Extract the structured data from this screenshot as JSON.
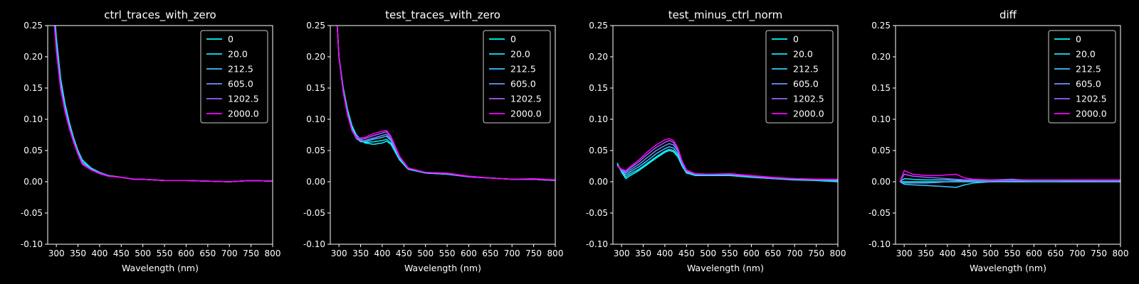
{
  "chart_data": [
    {
      "type": "line",
      "title": "ctrl_traces_with_zero",
      "xlabel": "Wavelength (nm)",
      "ylabel": "",
      "xlim": [
        280,
        800
      ],
      "ylim": [
        -0.1,
        0.25
      ],
      "xticks": [
        "300",
        "350",
        "400",
        "450",
        "500",
        "550",
        "600",
        "650",
        "700",
        "750",
        "800"
      ],
      "yticks": [
        "-0.10",
        "-0.05",
        "0.00",
        "0.05",
        "0.10",
        "0.15",
        "0.20",
        "0.25"
      ],
      "legend": "top-right",
      "x": [
        290,
        300,
        310,
        320,
        330,
        340,
        350,
        360,
        380,
        400,
        420,
        450,
        480,
        500,
        550,
        600,
        650,
        700,
        750,
        800
      ],
      "series": [
        {
          "name": "0",
          "color": "#00ffff",
          "values": [
            0.32,
            0.23,
            0.165,
            0.125,
            0.095,
            0.07,
            0.05,
            0.035,
            0.022,
            0.015,
            0.01,
            0.007,
            0.004,
            0.004,
            0.002,
            0.002,
            0.001,
            0.0,
            0.002,
            0.001
          ]
        },
        {
          "name": "20.0",
          "color": "#1ce3ff",
          "values": [
            0.31,
            0.22,
            0.16,
            0.122,
            0.092,
            0.068,
            0.049,
            0.034,
            0.021,
            0.015,
            0.01,
            0.007,
            0.004,
            0.004,
            0.002,
            0.002,
            0.001,
            0.0,
            0.002,
            0.001
          ]
        },
        {
          "name": "212.5",
          "color": "#3ac5ff",
          "values": [
            0.3,
            0.215,
            0.155,
            0.118,
            0.09,
            0.066,
            0.047,
            0.031,
            0.02,
            0.014,
            0.01,
            0.007,
            0.004,
            0.004,
            0.002,
            0.002,
            0.001,
            0.0,
            0.002,
            0.001
          ]
        },
        {
          "name": "605.0",
          "color": "#6a95ff",
          "values": [
            0.3,
            0.212,
            0.152,
            0.116,
            0.088,
            0.065,
            0.046,
            0.03,
            0.02,
            0.014,
            0.01,
            0.007,
            0.004,
            0.004,
            0.002,
            0.002,
            0.001,
            0.0,
            0.002,
            0.001
          ]
        },
        {
          "name": "1202.5",
          "color": "#9e61ff",
          "values": [
            0.3,
            0.21,
            0.15,
            0.114,
            0.086,
            0.064,
            0.045,
            0.029,
            0.019,
            0.014,
            0.009,
            0.007,
            0.004,
            0.004,
            0.002,
            0.002,
            0.001,
            0.0,
            0.002,
            0.001
          ]
        },
        {
          "name": "2000.0",
          "color": "#ff00ff",
          "values": [
            0.3,
            0.208,
            0.148,
            0.112,
            0.085,
            0.063,
            0.044,
            0.028,
            0.019,
            0.013,
            0.009,
            0.007,
            0.004,
            0.004,
            0.002,
            0.002,
            0.001,
            0.0,
            0.002,
            0.001
          ]
        }
      ]
    },
    {
      "type": "line",
      "title": "test_traces_with_zero",
      "xlabel": "Wavelength (nm)",
      "ylabel": "",
      "xlim": [
        280,
        800
      ],
      "ylim": [
        -0.1,
        0.25
      ],
      "xticks": [
        "300",
        "350",
        "400",
        "450",
        "500",
        "550",
        "600",
        "650",
        "700",
        "750",
        "800"
      ],
      "yticks": [
        "-0.10",
        "-0.05",
        "0.00",
        "0.05",
        "0.10",
        "0.15",
        "0.20",
        "0.25"
      ],
      "legend": "top-right",
      "x": [
        290,
        300,
        310,
        320,
        330,
        340,
        350,
        360,
        380,
        400,
        410,
        420,
        440,
        460,
        500,
        550,
        600,
        650,
        700,
        750,
        800
      ],
      "series": [
        {
          "name": "0",
          "color": "#00ffff",
          "values": [
            0.32,
            0.2,
            0.15,
            0.115,
            0.09,
            0.075,
            0.068,
            0.062,
            0.06,
            0.062,
            0.065,
            0.06,
            0.035,
            0.02,
            0.014,
            0.012,
            0.008,
            0.006,
            0.004,
            0.004,
            0.002
          ]
        },
        {
          "name": "20.0",
          "color": "#1ce3ff",
          "values": [
            0.32,
            0.2,
            0.148,
            0.112,
            0.087,
            0.072,
            0.065,
            0.063,
            0.064,
            0.066,
            0.068,
            0.062,
            0.036,
            0.02,
            0.014,
            0.012,
            0.008,
            0.006,
            0.004,
            0.004,
            0.002
          ]
        },
        {
          "name": "212.5",
          "color": "#3ac5ff",
          "values": [
            0.32,
            0.2,
            0.146,
            0.11,
            0.085,
            0.07,
            0.064,
            0.064,
            0.068,
            0.071,
            0.073,
            0.066,
            0.038,
            0.021,
            0.014,
            0.013,
            0.008,
            0.006,
            0.004,
            0.004,
            0.002
          ]
        },
        {
          "name": "605.0",
          "color": "#6a95ff",
          "values": [
            0.32,
            0.2,
            0.145,
            0.108,
            0.083,
            0.069,
            0.065,
            0.066,
            0.07,
            0.074,
            0.076,
            0.068,
            0.039,
            0.021,
            0.015,
            0.013,
            0.008,
            0.006,
            0.004,
            0.004,
            0.002
          ]
        },
        {
          "name": "1202.5",
          "color": "#9e61ff",
          "values": [
            0.32,
            0.2,
            0.144,
            0.107,
            0.082,
            0.07,
            0.068,
            0.069,
            0.074,
            0.078,
            0.08,
            0.071,
            0.04,
            0.022,
            0.015,
            0.013,
            0.008,
            0.006,
            0.004,
            0.004,
            0.002
          ]
        },
        {
          "name": "2000.0",
          "color": "#ff00ff",
          "values": [
            0.32,
            0.2,
            0.143,
            0.106,
            0.082,
            0.071,
            0.07,
            0.071,
            0.077,
            0.081,
            0.082,
            0.073,
            0.041,
            0.022,
            0.015,
            0.014,
            0.009,
            0.006,
            0.004,
            0.005,
            0.003
          ]
        }
      ]
    },
    {
      "type": "line",
      "title": "test_minus_ctrl_norm",
      "xlabel": "Wavelength (nm)",
      "ylabel": "",
      "xlim": [
        280,
        800
      ],
      "ylim": [
        -0.1,
        0.25
      ],
      "xticks": [
        "300",
        "350",
        "400",
        "450",
        "500",
        "550",
        "600",
        "650",
        "700",
        "750",
        "800"
      ],
      "yticks": [
        "-0.10",
        "-0.05",
        "0.00",
        "0.05",
        "0.10",
        "0.15",
        "0.20",
        "0.25"
      ],
      "legend": "top-right",
      "x": [
        290,
        300,
        310,
        320,
        340,
        360,
        380,
        400,
        410,
        420,
        430,
        440,
        450,
        470,
        500,
        550,
        600,
        650,
        700,
        750,
        800
      ],
      "series": [
        {
          "name": "0",
          "color": "#00ffff",
          "values": [
            0.03,
            0.015,
            0.005,
            0.01,
            0.018,
            0.028,
            0.038,
            0.047,
            0.05,
            0.048,
            0.04,
            0.025,
            0.014,
            0.01,
            0.01,
            0.01,
            0.007,
            0.005,
            0.003,
            0.002,
            0.0
          ]
        },
        {
          "name": "20.0",
          "color": "#1ce3ff",
          "values": [
            0.028,
            0.016,
            0.008,
            0.013,
            0.02,
            0.03,
            0.04,
            0.049,
            0.052,
            0.05,
            0.042,
            0.026,
            0.015,
            0.011,
            0.011,
            0.011,
            0.008,
            0.005,
            0.004,
            0.003,
            0.001
          ]
        },
        {
          "name": "212.5",
          "color": "#3ac5ff",
          "values": [
            0.027,
            0.017,
            0.011,
            0.016,
            0.024,
            0.034,
            0.045,
            0.053,
            0.056,
            0.054,
            0.045,
            0.028,
            0.016,
            0.011,
            0.011,
            0.011,
            0.008,
            0.005,
            0.004,
            0.003,
            0.002
          ]
        },
        {
          "name": "605.0",
          "color": "#6a95ff",
          "values": [
            0.026,
            0.018,
            0.014,
            0.019,
            0.028,
            0.039,
            0.05,
            0.058,
            0.061,
            0.059,
            0.049,
            0.03,
            0.017,
            0.012,
            0.012,
            0.012,
            0.009,
            0.006,
            0.005,
            0.003,
            0.003
          ]
        },
        {
          "name": "1202.5",
          "color": "#9e61ff",
          "values": [
            0.026,
            0.019,
            0.016,
            0.022,
            0.032,
            0.044,
            0.055,
            0.063,
            0.066,
            0.063,
            0.052,
            0.032,
            0.018,
            0.012,
            0.012,
            0.012,
            0.009,
            0.006,
            0.005,
            0.004,
            0.003
          ]
        },
        {
          "name": "2000.0",
          "color": "#ff00ff",
          "values": [
            0.026,
            0.02,
            0.018,
            0.024,
            0.035,
            0.048,
            0.059,
            0.067,
            0.069,
            0.066,
            0.054,
            0.033,
            0.019,
            0.013,
            0.012,
            0.013,
            0.01,
            0.007,
            0.005,
            0.004,
            0.004
          ]
        }
      ]
    },
    {
      "type": "line",
      "title": "diff",
      "xlabel": "Wavelength (nm)",
      "ylabel": "",
      "xlim": [
        280,
        800
      ],
      "ylim": [
        -0.1,
        0.25
      ],
      "xticks": [
        "300",
        "350",
        "400",
        "450",
        "500",
        "550",
        "600",
        "650",
        "700",
        "750",
        "800"
      ],
      "yticks": [
        "-0.10",
        "-0.05",
        "0.00",
        "0.05",
        "0.10",
        "0.15",
        "0.20",
        "0.25"
      ],
      "legend": "top-right",
      "x": [
        290,
        300,
        320,
        350,
        380,
        400,
        420,
        440,
        460,
        500,
        550,
        600,
        650,
        700,
        750,
        800
      ],
      "series": [
        {
          "name": "0",
          "color": "#00ffff",
          "values": [
            0.0,
            0.0,
            0.0,
            0.0,
            0.0,
            0.0,
            0.0,
            0.0,
            0.0,
            0.0,
            0.0,
            0.0,
            0.0,
            0.0,
            0.0,
            0.0
          ]
        },
        {
          "name": "20.0",
          "color": "#1ce3ff",
          "values": [
            0.0,
            0.005,
            0.004,
            0.003,
            0.003,
            0.003,
            0.002,
            0.002,
            0.003,
            0.003,
            0.004,
            0.002,
            0.002,
            0.002,
            0.002,
            0.001
          ]
        },
        {
          "name": "212.5",
          "color": "#3ac5ff",
          "values": [
            0.0,
            -0.004,
            -0.005,
            -0.006,
            -0.007,
            -0.008,
            -0.009,
            -0.005,
            -0.002,
            0.0,
            0.001,
            0.002,
            0.002,
            0.002,
            0.001,
            0.001
          ]
        },
        {
          "name": "605.0",
          "color": "#6a95ff",
          "values": [
            0.0,
            -0.002,
            -0.002,
            -0.002,
            -0.001,
            0.0,
            0.0,
            0.001,
            0.002,
            0.002,
            0.002,
            0.002,
            0.002,
            0.001,
            0.001,
            0.001
          ]
        },
        {
          "name": "1202.5",
          "color": "#9e61ff",
          "values": [
            0.0,
            0.012,
            0.009,
            0.007,
            0.006,
            0.005,
            0.004,
            0.003,
            0.003,
            0.002,
            0.002,
            0.002,
            0.002,
            0.002,
            0.002,
            0.002
          ]
        },
        {
          "name": "2000.0",
          "color": "#ff00ff",
          "values": [
            0.0,
            0.018,
            0.012,
            0.01,
            0.01,
            0.011,
            0.012,
            0.006,
            0.004,
            0.003,
            0.003,
            0.003,
            0.003,
            0.003,
            0.003,
            0.003
          ]
        }
      ]
    }
  ]
}
